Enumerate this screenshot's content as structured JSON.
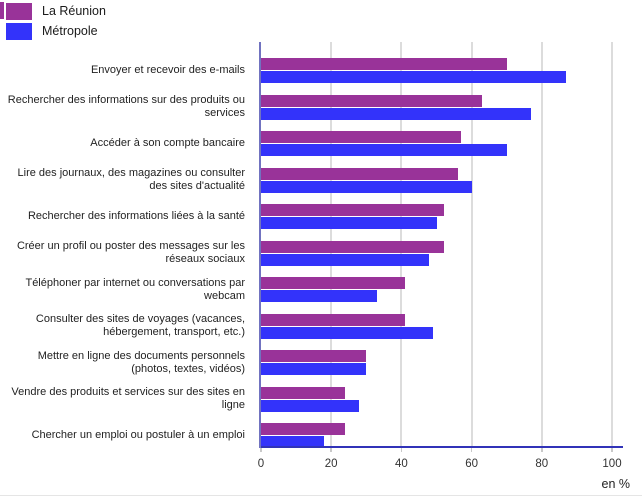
{
  "legend": {
    "items": [
      {
        "label": "La Réunion",
        "color": "#993399"
      },
      {
        "label": "Métropole",
        "color": "#3333fa"
      }
    ]
  },
  "axis": {
    "ticks": [
      0,
      20,
      40,
      60,
      80,
      100
    ],
    "unit": "en %"
  },
  "colors": {
    "la_reunion": "#993399",
    "metropole": "#3333fa",
    "gridline": "#dcdcdc",
    "axis_y": "#7173c0",
    "axis_x": "#3133b8"
  },
  "chart_data": {
    "type": "bar",
    "orientation": "horizontal",
    "title": "",
    "xlabel": "en %",
    "xlim": [
      0,
      100
    ],
    "grid": "vertical",
    "legend_position": "top-left",
    "categories": [
      "Envoyer et recevoir des e-mails",
      "Rechercher des informations sur des produits ou services",
      "Accéder à son compte bancaire",
      "Lire des journaux, des magazines ou consulter des sites d'actualité",
      "Rechercher des informations liées à la santé",
      "Créer un profil ou poster des messages sur les réseaux sociaux",
      "Téléphoner par internet ou conversations par webcam",
      "Consulter des sites de voyages (vacances, hébergement, transport, etc.)",
      "Mettre en ligne des documents personnels (photos, textes, vidéos)",
      "Vendre des produits et services sur des sites en ligne",
      "Chercher un emploi ou postuler à un emploi"
    ],
    "series": [
      {
        "name": "La Réunion",
        "color": "#993399",
        "values": [
          70,
          63,
          57,
          56,
          52,
          52,
          41,
          41,
          30,
          24,
          24
        ]
      },
      {
        "name": "Métropole",
        "color": "#3333fa",
        "values": [
          87,
          77,
          70,
          60,
          50,
          48,
          33,
          49,
          30,
          28,
          18
        ]
      }
    ]
  }
}
